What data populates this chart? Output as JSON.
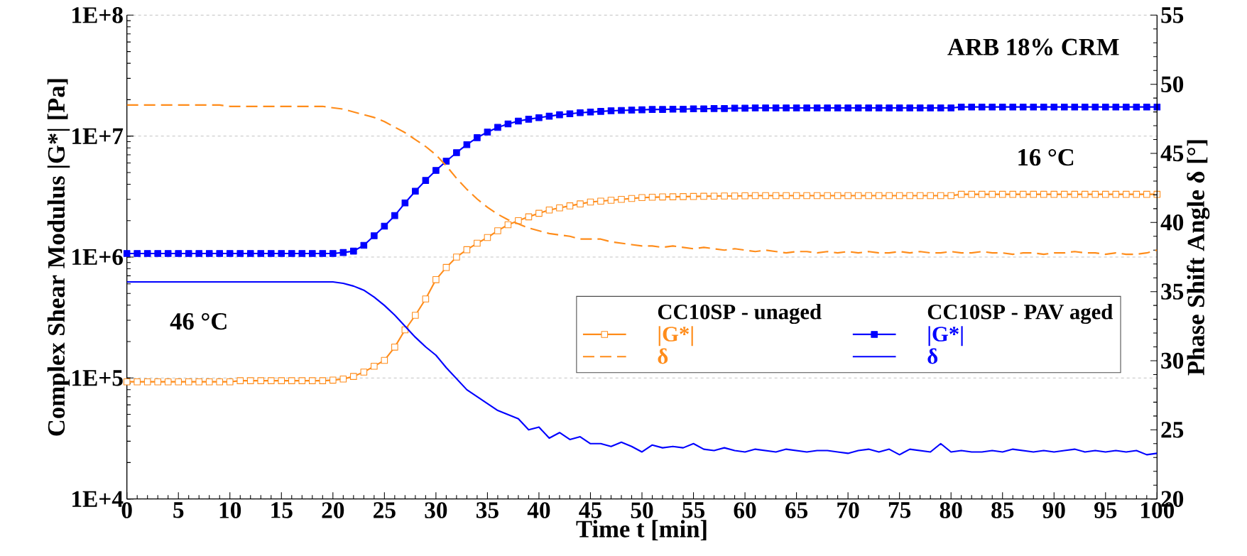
{
  "chart_data": {
    "type": "line",
    "xlabel": "Time t [min]",
    "ylabel": "Complex Shear Modulus |G*| [Pa]",
    "y2label": "Phase Shift Angle δ [°]",
    "annotations": [
      "ARB 18% CRM",
      "46 °C",
      "16 °C",
      "CC10SP - unaged",
      "CC10SP - PAV aged"
    ],
    "x": [
      0,
      1,
      2,
      3,
      4,
      5,
      6,
      7,
      8,
      9,
      10,
      11,
      12,
      13,
      14,
      15,
      16,
      17,
      18,
      19,
      20,
      21,
      22,
      23,
      24,
      25,
      26,
      27,
      28,
      29,
      30,
      31,
      32,
      33,
      34,
      35,
      36,
      37,
      38,
      39,
      40,
      41,
      42,
      43,
      44,
      45,
      46,
      47,
      48,
      49,
      50,
      51,
      52,
      53,
      54,
      55,
      56,
      57,
      58,
      59,
      60,
      61,
      62,
      63,
      64,
      65,
      66,
      67,
      68,
      69,
      70,
      71,
      72,
      73,
      74,
      75,
      76,
      77,
      78,
      79,
      80,
      81,
      82,
      83,
      84,
      85,
      86,
      87,
      88,
      89,
      90,
      91,
      92,
      93,
      94,
      95,
      96,
      97,
      98,
      99,
      100
    ],
    "xlim": [
      0,
      100
    ],
    "xticks": [
      0,
      5,
      10,
      15,
      20,
      25,
      30,
      35,
      40,
      45,
      50,
      55,
      60,
      65,
      70,
      75,
      80,
      85,
      90,
      95,
      100
    ],
    "ylim": [
      10000,
      100000000
    ],
    "yticks": [
      {
        "value": 10000,
        "label": "1E+4"
      },
      {
        "value": 100000,
        "label": "1E+5"
      },
      {
        "value": 1000000,
        "label": "1E+6"
      },
      {
        "value": 10000000,
        "label": "1E+7"
      },
      {
        "value": 100000000,
        "label": "1E+8"
      }
    ],
    "y2lim": [
      20,
      55
    ],
    "y2ticks": [
      20,
      25,
      30,
      35,
      40,
      45,
      50,
      55
    ],
    "log": "y",
    "grid": "y",
    "legend": "right",
    "series": [
      {
        "name": "|G*|",
        "color": "#ff8c1a",
        "marker": "square",
        "line_style": "solid",
        "axis": "y",
        "values": [
          93000,
          93000,
          93000,
          93000,
          93000,
          93000,
          93000,
          93000,
          93000,
          93000,
          93000,
          95000,
          95000,
          95000,
          95000,
          95000,
          95000,
          95000,
          95000,
          95000,
          96000,
          98000,
          103000,
          112000,
          125000,
          140000,
          180000,
          250000,
          330000,
          450000,
          650000,
          820000,
          1000000,
          1150000,
          1300000,
          1450000,
          1650000,
          1850000,
          2000000,
          2150000,
          2300000,
          2450000,
          2550000,
          2650000,
          2750000,
          2850000,
          2900000,
          2950000,
          3000000,
          3050000,
          3100000,
          3120000,
          3140000,
          3150000,
          3160000,
          3170000,
          3180000,
          3190000,
          3200000,
          3200000,
          3210000,
          3220000,
          3220000,
          3220000,
          3220000,
          3220000,
          3220000,
          3220000,
          3220000,
          3220000,
          3220000,
          3220000,
          3220000,
          3220000,
          3220000,
          3220000,
          3220000,
          3220000,
          3220000,
          3220000,
          3220000,
          3300000,
          3300000,
          3300000,
          3300000,
          3300000,
          3300000,
          3300000,
          3300000,
          3300000,
          3300000,
          3300000,
          3300000,
          3300000,
          3300000,
          3300000,
          3300000,
          3300000,
          3300000,
          3300000,
          3300000
        ]
      },
      {
        "name": "δ",
        "color": "#ff8c1a",
        "marker": "none",
        "line_style": "dashed",
        "axis": "y2",
        "values": [
          48.5,
          48.5,
          48.5,
          48.5,
          48.5,
          48.5,
          48.5,
          48.5,
          48.5,
          48.5,
          48.4,
          48.4,
          48.4,
          48.4,
          48.4,
          48.4,
          48.4,
          48.4,
          48.4,
          48.4,
          48.3,
          48.2,
          48.0,
          47.8,
          47.6,
          47.3,
          46.9,
          46.5,
          46.0,
          45.5,
          44.9,
          44.1,
          43.2,
          42.4,
          41.7,
          41.1,
          40.6,
          40.2,
          39.9,
          39.6,
          39.4,
          39.2,
          39.1,
          39.0,
          38.8,
          38.8,
          38.8,
          38.6,
          38.5,
          38.4,
          38.3,
          38.3,
          38.2,
          38.3,
          38.2,
          38.1,
          38.2,
          38.1,
          38.0,
          38.1,
          38.0,
          37.9,
          38.0,
          37.9,
          37.8,
          37.9,
          37.9,
          37.8,
          37.9,
          37.8,
          37.9,
          37.8,
          37.9,
          37.8,
          37.8,
          37.9,
          37.8,
          37.9,
          37.8,
          37.8,
          37.9,
          37.8,
          37.8,
          37.9,
          37.8,
          37.8,
          37.7,
          37.8,
          37.8,
          37.7,
          37.8,
          37.8,
          37.9,
          37.8,
          37.8,
          37.7,
          37.8,
          37.7,
          37.7,
          37.8,
          38.0
        ]
      },
      {
        "name": "|G*|",
        "color": "#0000ff",
        "marker": "square",
        "line_style": "solid",
        "axis": "y",
        "values": [
          1070000,
          1070000,
          1070000,
          1070000,
          1070000,
          1070000,
          1070000,
          1070000,
          1070000,
          1070000,
          1070000,
          1070000,
          1070000,
          1070000,
          1070000,
          1070000,
          1070000,
          1070000,
          1070000,
          1070000,
          1070000,
          1090000,
          1120000,
          1250000,
          1500000,
          1800000,
          2200000,
          2800000,
          3500000,
          4300000,
          5200000,
          6200000,
          7300000,
          8500000,
          9700000,
          10800000,
          11800000,
          12600000,
          13300000,
          13800000,
          14200000,
          14600000,
          15000000,
          15300000,
          15600000,
          15800000,
          16000000,
          16200000,
          16300000,
          16400000,
          16500000,
          16600000,
          16600000,
          16700000,
          16700000,
          16800000,
          16800000,
          16900000,
          16900000,
          17000000,
          17000000,
          17100000,
          17100000,
          17100000,
          17100000,
          17100000,
          17100000,
          17100000,
          17100000,
          17100000,
          17100000,
          17100000,
          17100000,
          17100000,
          17100000,
          17100000,
          17100000,
          17100000,
          17100000,
          17100000,
          17100000,
          17400000,
          17400000,
          17400000,
          17400000,
          17400000,
          17400000,
          17400000,
          17400000,
          17400000,
          17400000,
          17400000,
          17400000,
          17400000,
          17400000,
          17400000,
          17400000,
          17400000,
          17400000,
          17400000,
          17400000
        ]
      },
      {
        "name": "δ",
        "color": "#0000ff",
        "marker": "none",
        "line_style": "solid",
        "axis": "y2",
        "values": [
          35.7,
          35.7,
          35.7,
          35.7,
          35.7,
          35.7,
          35.7,
          35.7,
          35.7,
          35.7,
          35.7,
          35.7,
          35.7,
          35.7,
          35.7,
          35.7,
          35.7,
          35.7,
          35.7,
          35.7,
          35.7,
          35.6,
          35.4,
          35.1,
          34.6,
          34.0,
          33.3,
          32.5,
          31.7,
          31.0,
          30.4,
          29.5,
          28.7,
          27.9,
          27.4,
          26.9,
          26.4,
          26.1,
          25.8,
          25.0,
          25.2,
          24.4,
          24.8,
          24.3,
          24.5,
          24.0,
          24.0,
          23.8,
          24.1,
          23.8,
          23.4,
          23.9,
          23.7,
          23.8,
          23.7,
          24.0,
          23.6,
          23.5,
          23.7,
          23.5,
          23.4,
          23.6,
          23.5,
          23.4,
          23.6,
          23.5,
          23.4,
          23.5,
          23.5,
          23.4,
          23.3,
          23.5,
          23.6,
          23.4,
          23.6,
          23.2,
          23.6,
          23.5,
          23.4,
          24.0,
          23.4,
          23.5,
          23.4,
          23.4,
          23.5,
          23.4,
          23.6,
          23.5,
          23.4,
          23.5,
          23.4,
          23.5,
          23.6,
          23.4,
          23.5,
          23.4,
          23.5,
          23.4,
          23.5,
          23.2,
          23.3
        ]
      }
    ]
  }
}
